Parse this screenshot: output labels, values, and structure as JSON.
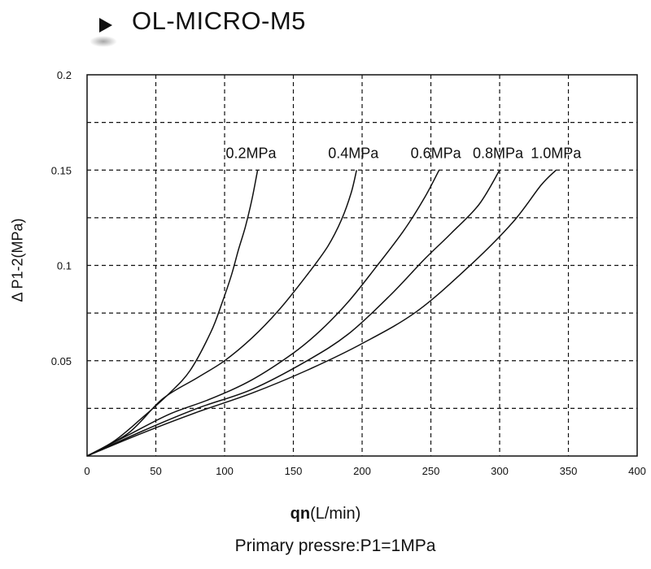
{
  "header": {
    "title": "OL-MICRO-M5",
    "arrow_icon": "play-triangle-icon"
  },
  "chart_data": {
    "type": "line",
    "title": "",
    "xlabel_bold": "qn",
    "xlabel_unit": "(L/min)",
    "ylabel": "Δ P1-2(MPa)",
    "xlim": [
      0,
      400
    ],
    "ylim": [
      0,
      0.2
    ],
    "x_ticks": [
      "0",
      "50",
      "100",
      "150",
      "200",
      "250",
      "300",
      "350",
      "400"
    ],
    "y_ticks": [
      "0.05",
      "0.1",
      "0.15",
      "0.2"
    ],
    "grid": true,
    "series": [
      {
        "name": "0.2MPa",
        "x": [
          0,
          20,
          40,
          60,
          75,
          90,
          98,
          105,
          110,
          115,
          120,
          124
        ],
        "y": [
          0,
          0.008,
          0.02,
          0.033,
          0.045,
          0.065,
          0.08,
          0.095,
          0.108,
          0.12,
          0.135,
          0.15
        ]
      },
      {
        "name": "0.4MPa",
        "x": [
          0,
          30,
          55,
          80,
          100,
          120,
          140,
          160,
          175,
          185,
          192,
          196
        ],
        "y": [
          0,
          0.012,
          0.03,
          0.041,
          0.05,
          0.062,
          0.077,
          0.095,
          0.11,
          0.124,
          0.138,
          0.15
        ]
      },
      {
        "name": "0.6MPa",
        "x": [
          0,
          30,
          60,
          90,
          120,
          150,
          170,
          190,
          210,
          230,
          245,
          256
        ],
        "y": [
          0,
          0.011,
          0.022,
          0.03,
          0.04,
          0.054,
          0.066,
          0.081,
          0.099,
          0.118,
          0.135,
          0.15
        ]
      },
      {
        "name": "0.8MPa",
        "x": [
          0,
          40,
          80,
          120,
          160,
          190,
          220,
          245,
          265,
          285,
          300
        ],
        "y": [
          0,
          0.013,
          0.025,
          0.035,
          0.05,
          0.064,
          0.084,
          0.103,
          0.117,
          0.132,
          0.15
        ]
      },
      {
        "name": "1.0MPa",
        "x": [
          0,
          40,
          80,
          120,
          160,
          200,
          240,
          280,
          310,
          330,
          341
        ],
        "y": [
          0,
          0.012,
          0.023,
          0.033,
          0.045,
          0.059,
          0.076,
          0.101,
          0.123,
          0.142,
          0.15
        ]
      }
    ],
    "line_color": "#111111"
  },
  "footer": {
    "text": "Primary pressre:P1=1MPa"
  }
}
